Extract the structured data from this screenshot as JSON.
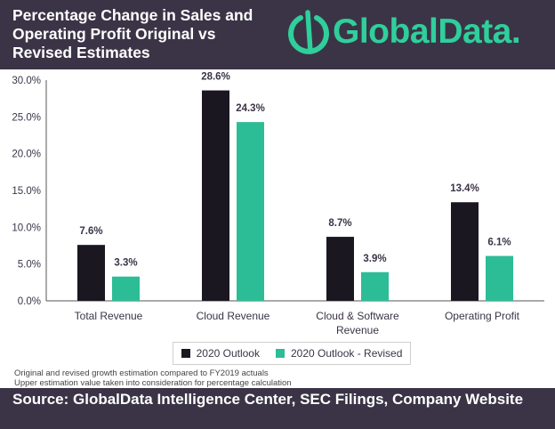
{
  "header": {
    "title": "Percentage Change in Sales and Operating Profit Original vs Revised Estimates",
    "logo_text": "GlobalData."
  },
  "notes": [
    "Original and revised growth estimation compared to FY2019 actuals",
    "Upper estimation value taken into consideration for percentage calculation"
  ],
  "footer": {
    "source": "Source: GlobalData Intelligence Center, SEC Filings, Company Website"
  },
  "colors": {
    "header_bg": "#3b3447",
    "brand_green": "#2fcf9b",
    "series_outlook": "#1a1721",
    "series_revised": "#2dbd96"
  },
  "chart_data": {
    "type": "bar",
    "categories": [
      "Total Revenue",
      "Cloud Revenue",
      "Cloud & Software Revenue",
      "Operating Profit"
    ],
    "category_lines": [
      [
        "Total Revenue"
      ],
      [
        "Cloud Revenue"
      ],
      [
        "Cloud & Software",
        "Revenue"
      ],
      [
        "Operating Profit"
      ]
    ],
    "series": [
      {
        "name": "2020 Outlook",
        "values": [
          7.6,
          28.6,
          8.7,
          13.4
        ],
        "labels": [
          "7.6%",
          "28.6%",
          "8.7%",
          "13.4%"
        ]
      },
      {
        "name": "2020 Outlook - Revised",
        "values": [
          3.3,
          24.3,
          3.9,
          6.1
        ],
        "labels": [
          "3.3%",
          "24.3%",
          "3.9%",
          "6.1%"
        ]
      }
    ],
    "ylim": [
      0,
      30
    ],
    "yticks": [
      0,
      5,
      10,
      15,
      20,
      25,
      30
    ],
    "ytick_labels": [
      "0.0%",
      "5.0%",
      "10.0%",
      "15.0%",
      "20.0%",
      "25.0%",
      "30.0%"
    ],
    "grid": false,
    "legend_position": "bottom"
  }
}
